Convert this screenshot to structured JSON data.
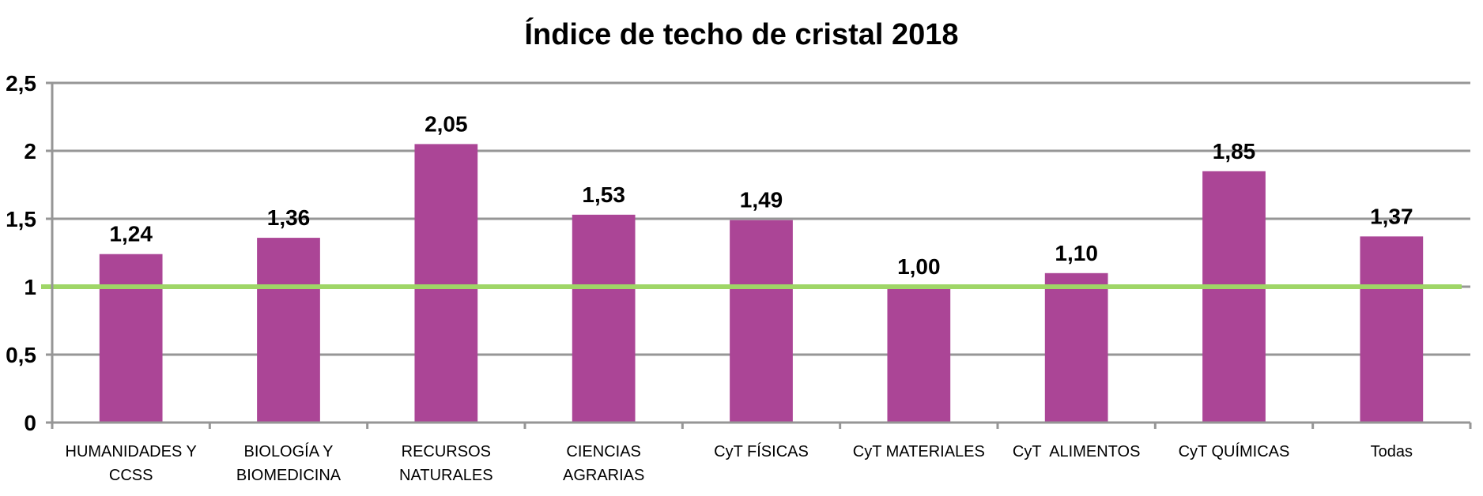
{
  "chart_data": {
    "type": "bar",
    "title": "Índice de techo de cristal 2018",
    "xlabel": "",
    "ylabel": "",
    "ylim": [
      0,
      2.5
    ],
    "yticks": [
      0,
      0.5,
      1,
      1.5,
      2,
      2.5
    ],
    "ytick_labels": [
      "0",
      "0,5",
      "1",
      "1,5",
      "2",
      "2,5"
    ],
    "grid": true,
    "legend": "none",
    "categories": [
      [
        "HUMANIDADES Y",
        "CCSS"
      ],
      [
        "BIOLOGÍA Y",
        "BIOMEDICINA"
      ],
      [
        "RECURSOS",
        "NATURALES"
      ],
      [
        "CIENCIAS",
        "AGRARIAS"
      ],
      [
        "CyT FÍSICAS"
      ],
      [
        "CyT MATERIALES"
      ],
      [
        "CyT  ALIMENTOS"
      ],
      [
        "CyT QUÍMICAS"
      ],
      [
        "Todas"
      ]
    ],
    "values": [
      1.24,
      1.36,
      2.05,
      1.53,
      1.49,
      1.0,
      1.1,
      1.85,
      1.37
    ],
    "data_labels": [
      "1,24",
      "1,36",
      "2,05",
      "1,53",
      "1,49",
      "1,00",
      "1,10",
      "1,85",
      "1,37"
    ],
    "reference_line": {
      "value": 1,
      "color": "#9fd667"
    },
    "colors": {
      "bar": "#ab4596",
      "grid": "#969696",
      "axis": "#969696"
    }
  }
}
